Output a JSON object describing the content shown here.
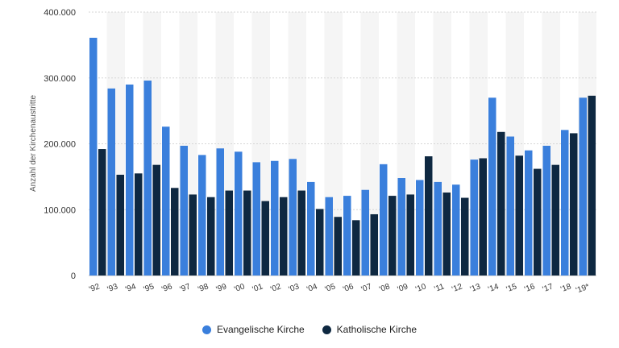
{
  "chart_data": {
    "type": "bar",
    "ylabel": "Anzahl der Kirchenaustritte",
    "ylim": [
      0,
      400000
    ],
    "yticks": [
      {
        "value": 0,
        "label": "0"
      },
      {
        "value": 100000,
        "label": "100.000"
      },
      {
        "value": 200000,
        "label": "200.000"
      },
      {
        "value": 300000,
        "label": "300.000"
      },
      {
        "value": 400000,
        "label": "400.000"
      }
    ],
    "grid": true,
    "legend_position": "bottom",
    "categories": [
      "'92",
      "'93",
      "'94",
      "'95",
      "'96",
      "'97",
      "'98",
      "'99",
      "'00",
      "'01",
      "'02",
      "'03",
      "'04",
      "'05",
      "'06",
      "'07",
      "'08",
      "'09",
      "'10",
      "'11",
      "'12",
      "'13",
      "'14",
      "'15",
      "'16",
      "'17",
      "'18",
      "'19*"
    ],
    "series": [
      {
        "name": "Evangelische Kirche",
        "color": "#3a7fdc",
        "values": [
          361000,
          284000,
          290000,
          296000,
          226000,
          197000,
          183000,
          193000,
          188000,
          172000,
          174000,
          177000,
          142000,
          119000,
          121000,
          130000,
          169000,
          148000,
          145000,
          142000,
          138000,
          176000,
          270000,
          211000,
          190000,
          197000,
          221000,
          270000
        ]
      },
      {
        "name": "Katholische Kirche",
        "color": "#0e2841",
        "values": [
          192000,
          153000,
          155000,
          168000,
          133000,
          123000,
          119000,
          129000,
          129000,
          113000,
          119000,
          129000,
          101000,
          89000,
          84000,
          93000,
          121000,
          123000,
          181000,
          126000,
          118000,
          178000,
          218000,
          182000,
          162000,
          168000,
          216000,
          273000
        ]
      }
    ]
  }
}
